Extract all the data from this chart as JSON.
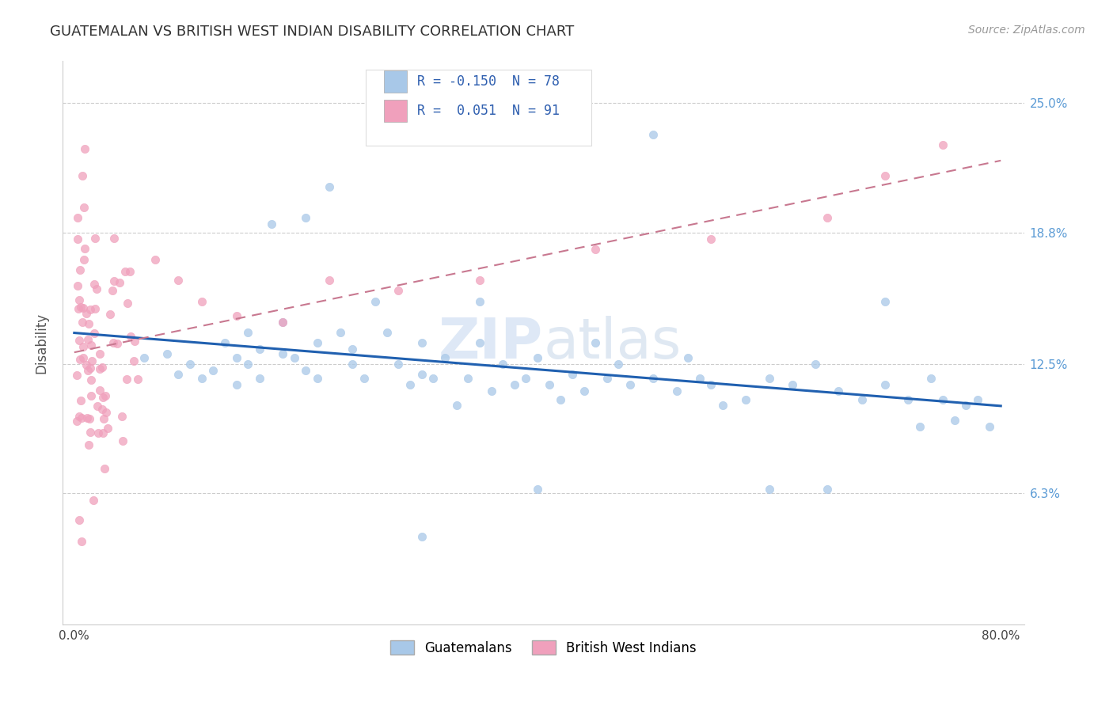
{
  "title": "GUATEMALAN VS BRITISH WEST INDIAN DISABILITY CORRELATION CHART",
  "source": "Source: ZipAtlas.com",
  "ylabel": "Disability",
  "ytick_labels": [
    "6.3%",
    "12.5%",
    "18.8%",
    "25.0%"
  ],
  "ytick_values": [
    0.063,
    0.125,
    0.188,
    0.25
  ],
  "xlim": [
    -0.01,
    0.82
  ],
  "ylim": [
    0.0,
    0.27
  ],
  "R_guatemalan": -0.15,
  "N_guatemalan": 78,
  "R_bwi": 0.051,
  "N_bwi": 91,
  "color_guatemalan": "#a8c8e8",
  "color_bwi": "#f0a0bc",
  "color_trendline_guatemalan": "#2060b0",
  "color_trendline_bwi": "#c87890",
  "legend_label_guatemalan": "Guatemalans",
  "legend_label_bwi": "British West Indians",
  "background_color": "#ffffff",
  "legend_R1": "R = -0.150",
  "legend_N1": "N = 78",
  "legend_R2": "R =  0.051",
  "legend_N2": "N = 91",
  "watermark_zip": "ZIP",
  "watermark_atlas": "atlas",
  "title_fontsize": 13,
  "source_fontsize": 10,
  "tick_fontsize": 11,
  "legend_fontsize": 12
}
